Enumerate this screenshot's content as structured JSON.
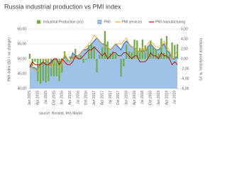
{
  "chart_data": {
    "type": "combo",
    "title": "Russia industrial production vs PMI index",
    "y_label": "PMI index (50 = no change)",
    "y2_label": "Industrial production, % y/y",
    "source": "source: Rosstat, IHS Markit",
    "categories": [
      "Jan 2015",
      null,
      null,
      "Apr 2015",
      null,
      null,
      "Jul 2015",
      null,
      null,
      "Oct 2015",
      null,
      null,
      "Jan 2016",
      null,
      null,
      "Apr 2016",
      null,
      null,
      "Jul 2016",
      null,
      null,
      "Oct 2016",
      null,
      null,
      "Jan 2017",
      null,
      null,
      "Apr 2017",
      null,
      null,
      "Jul 2017",
      null,
      null,
      "Oct 2017",
      null,
      null,
      "Jan 2018",
      null,
      null,
      "Apr 2018",
      null,
      null,
      "Jul 2018",
      null,
      null,
      "Oct 2018",
      null,
      null,
      "Jan 2019",
      null,
      null,
      "Apr 2019",
      null,
      null,
      "Jul 2019",
      null
    ],
    "series": [
      {
        "name": "Industrial Production (y/y)",
        "kind": "bar",
        "axis": "y2",
        "color": "#70ad47",
        "values": [
          1,
          -1.5,
          -0.6,
          -4.5,
          -5,
          -4.5,
          -4.8,
          -4.5,
          -3.5,
          -3.5,
          -3.5,
          -4.5,
          -2.8,
          1.5,
          -0.5,
          0.5,
          0.7,
          2,
          0.3,
          0.7,
          -0.8,
          -0.2,
          2.7,
          3.2,
          2.3,
          -2.7,
          0.8,
          2.3,
          5.6,
          3.5,
          1.1,
          1.5,
          0.9,
          0,
          -3.6,
          -1.5,
          2.9,
          1.5,
          1.3,
          3.9,
          3.7,
          2.2,
          3.9,
          2.7,
          2.1,
          3.7,
          2.4,
          2,
          1.1,
          4.1,
          1.2,
          4.6,
          0.9,
          3.3,
          2.8,
          2.9
        ]
      },
      {
        "name": "PMI",
        "kind": "area",
        "color": "#4472c4",
        "fill": "#9dc3e6",
        "values": [
          48,
          47,
          47,
          46,
          49,
          48,
          49,
          49,
          48,
          50,
          50,
          48,
          49,
          51,
          50,
          49,
          52,
          51,
          51,
          52,
          53,
          53,
          54,
          55,
          56,
          57,
          56,
          55,
          55,
          54,
          53,
          54,
          55,
          54,
          53,
          55,
          56,
          55,
          54,
          54,
          53,
          52,
          53,
          52,
          54,
          55,
          54,
          53,
          53,
          54,
          55,
          53,
          52,
          50,
          50,
          51
        ]
      },
      {
        "name": "PMI services",
        "kind": "line",
        "color": "#f5a623",
        "values": [
          49,
          47,
          46,
          46,
          48,
          49,
          50,
          49,
          47,
          49,
          49,
          47,
          48,
          52,
          50,
          49,
          51,
          50,
          51,
          52,
          53,
          54,
          55,
          56,
          58,
          57,
          56,
          55,
          54,
          54,
          53,
          54,
          55,
          55,
          55,
          56,
          57,
          55,
          54,
          54,
          53,
          52,
          54,
          52,
          55,
          56,
          55,
          54,
          54,
          54,
          56,
          54,
          53,
          50,
          51,
          53
        ]
      },
      {
        "name": "PMI manufacturing",
        "kind": "line",
        "color": "#c00000",
        "values": [
          47,
          49,
          48,
          48,
          48,
          49,
          48,
          48,
          49,
          50,
          50,
          48,
          50,
          49,
          48,
          48,
          49,
          51,
          50,
          50,
          51,
          52,
          53,
          53,
          54,
          53,
          52,
          51,
          52,
          50,
          51,
          52,
          52,
          51,
          51,
          52,
          52,
          51,
          50,
          51,
          51,
          49,
          49,
          49,
          50,
          52,
          51,
          51,
          50,
          52,
          51,
          51,
          50,
          48,
          49,
          48
        ]
      }
    ],
    "ylim": [
      40,
      60
    ],
    "yticks": [
      {
        "value": 40,
        "label": "40,00"
      },
      {
        "value": 45,
        "label": "45,00"
      },
      {
        "value": 50,
        "label": "50,00"
      },
      {
        "value": 55,
        "label": "55,00"
      },
      {
        "value": 60,
        "label": "60,00"
      }
    ],
    "y2lim": [
      -6,
      6
    ],
    "y2ticks": [
      {
        "value": -6,
        "label": "-6,00"
      },
      {
        "value": -4,
        "label": "-4,00"
      },
      {
        "value": -2,
        "label": "-2,00"
      },
      {
        "value": 0,
        "label": "0,00"
      },
      {
        "value": 2,
        "label": "2,00"
      },
      {
        "value": 4,
        "label": "4,00"
      },
      {
        "value": 6,
        "label": "6,00"
      }
    ],
    "grid": true,
    "legend": "top"
  }
}
